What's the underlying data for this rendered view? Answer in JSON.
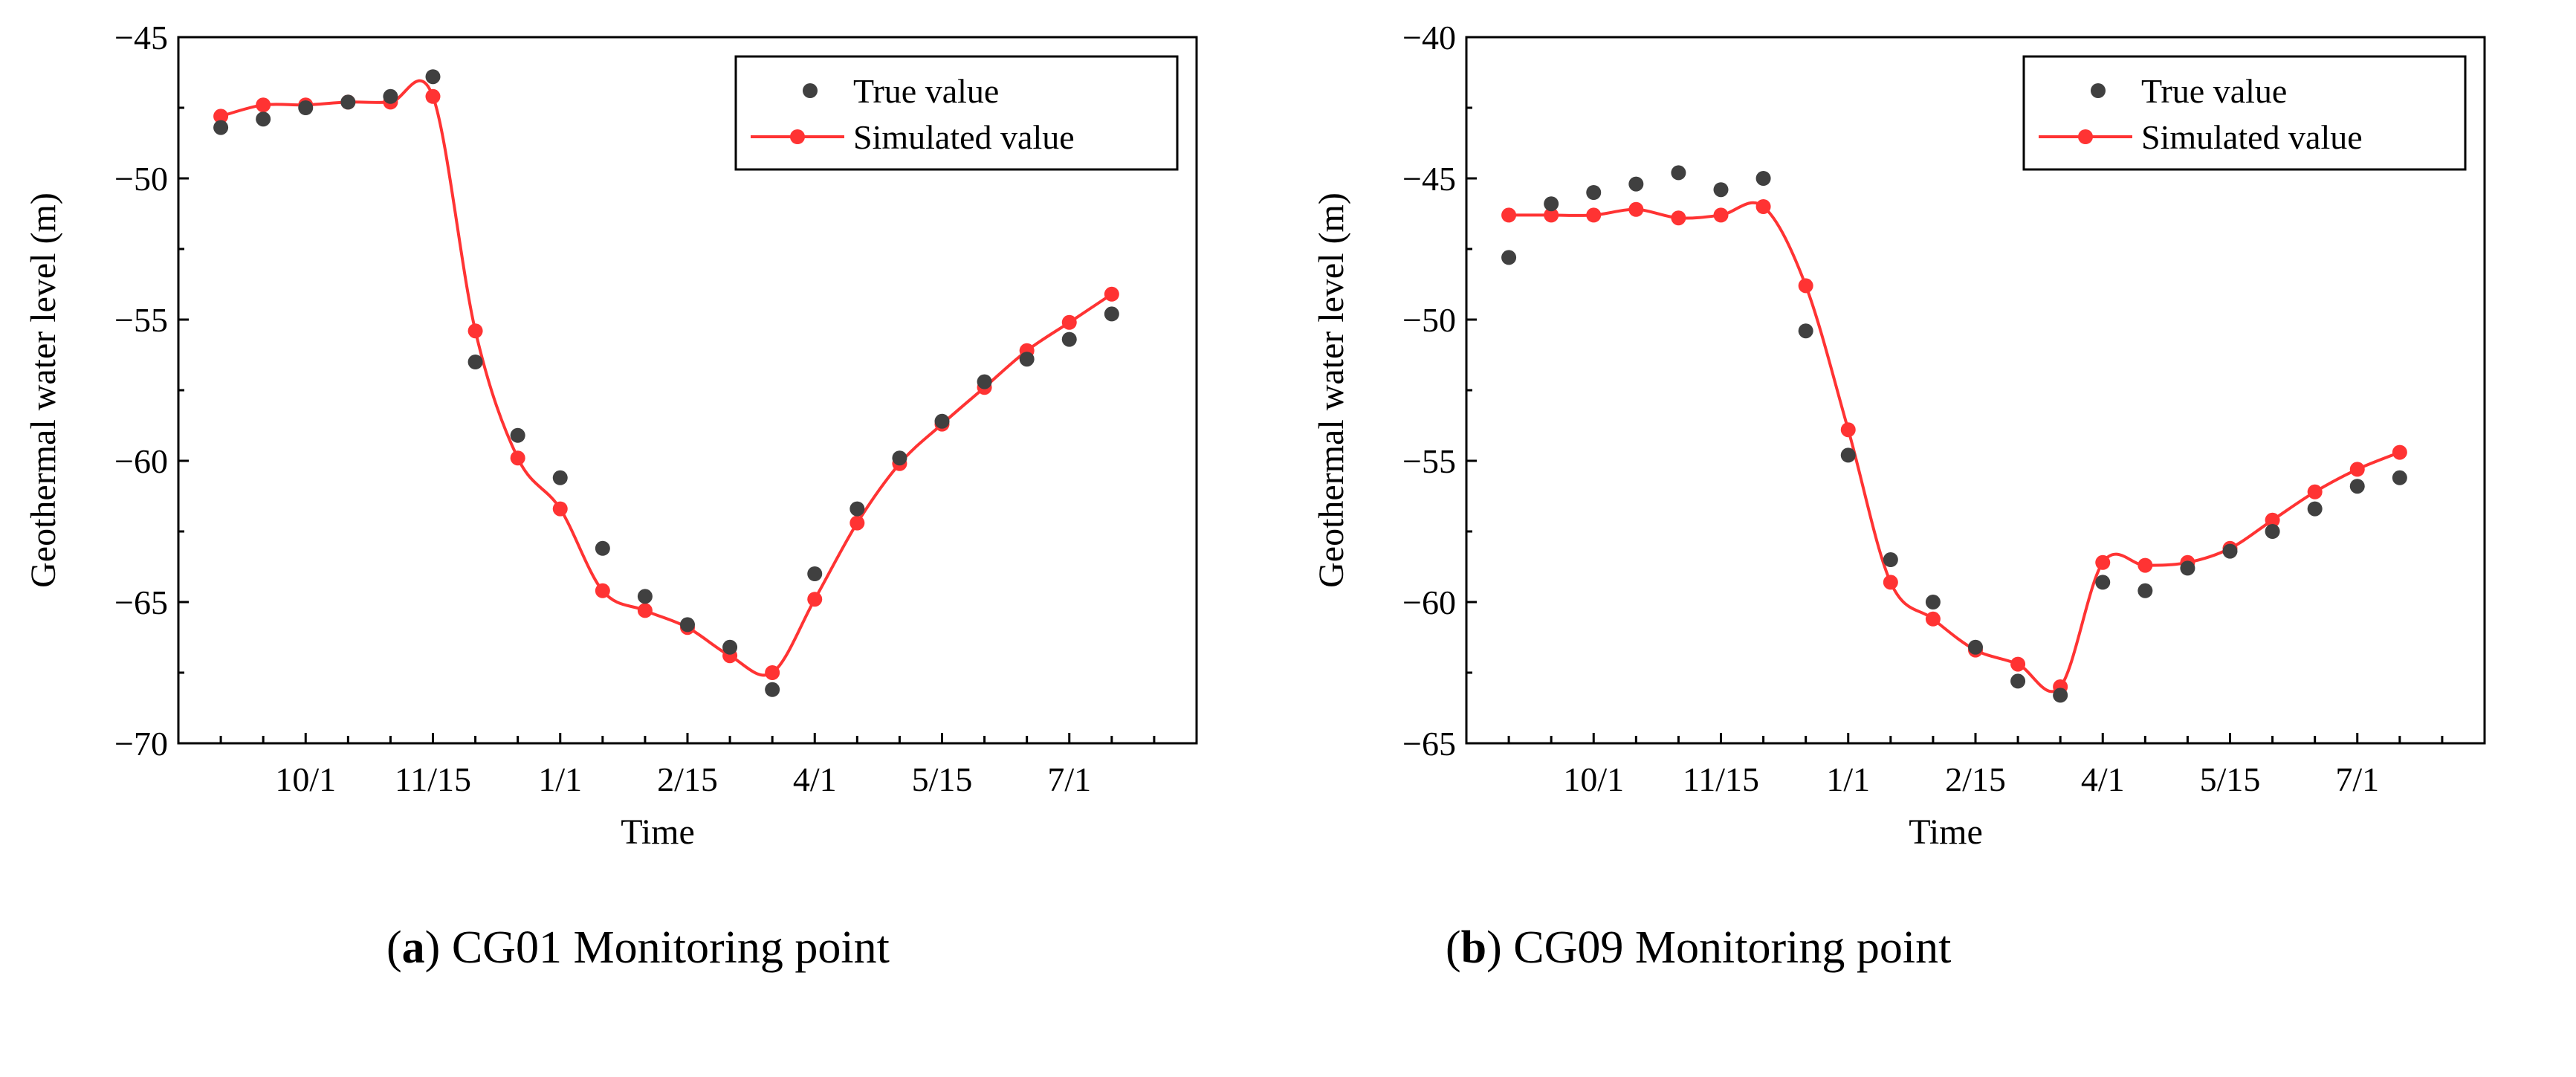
{
  "colors": {
    "true": "#404040",
    "sim": "#ff3333",
    "axis": "#000000"
  },
  "chart_data": [
    {
      "type": "line",
      "id": "a",
      "caption_letter": "a",
      "caption_text": " CG01 Monitoring point",
      "xlabel": "Time",
      "ylabel": "Geothermal water level (m)",
      "ylim": [
        -70,
        -45
      ],
      "yticks": [
        -45,
        -50,
        -55,
        -60,
        -65,
        -70
      ],
      "ytick_labels": [
        "−45",
        "−50",
        "−55",
        "−60",
        "−65",
        "−70"
      ],
      "xticks_labels": [
        "10/1",
        "11/15",
        "1/1",
        "2/15",
        "4/1",
        "5/15",
        "7/1"
      ],
      "xlim": [
        0,
        24
      ],
      "xtick_index_positions": [
        3,
        6,
        9,
        12,
        15,
        18,
        21
      ],
      "legend": [
        "True value",
        "Simulated value"
      ],
      "series": [
        {
          "name": "True value",
          "marker": "dot",
          "x": [
            1,
            2,
            3,
            4,
            5,
            6,
            7,
            8,
            9,
            10,
            11,
            12,
            13,
            14,
            15,
            16,
            17,
            18,
            19,
            20,
            21,
            22
          ],
          "y": [
            -48.2,
            -47.9,
            -47.5,
            -47.3,
            -47.1,
            -46.4,
            -56.5,
            -59.1,
            -60.6,
            -63.1,
            -64.8,
            -65.8,
            -66.6,
            -68.1,
            -64.0,
            -61.7,
            -59.9,
            -58.6,
            -57.2,
            -56.4,
            -55.7,
            -54.8
          ]
        },
        {
          "name": "Simulated value",
          "marker": "line",
          "x": [
            1,
            2,
            3,
            4,
            5,
            6,
            7,
            8,
            9,
            10,
            11,
            12,
            13,
            14,
            15,
            16,
            17,
            18,
            19,
            20,
            21,
            22
          ],
          "y": [
            -47.8,
            -47.4,
            -47.4,
            -47.3,
            -47.3,
            -47.1,
            -55.4,
            -59.9,
            -61.7,
            -64.6,
            -65.3,
            -65.9,
            -66.9,
            -67.5,
            -64.9,
            -62.2,
            -60.1,
            -58.7,
            -57.4,
            -56.1,
            -55.1,
            -54.1
          ]
        }
      ]
    },
    {
      "type": "line",
      "id": "b",
      "caption_letter": "b",
      "caption_text": " CG09 Monitoring point",
      "xlabel": "Time",
      "ylabel": "Geothermal water level (m)",
      "ylim": [
        -65,
        -40
      ],
      "yticks": [
        -40,
        -45,
        -50,
        -55,
        -60,
        -65
      ],
      "ytick_labels": [
        "−40",
        "−45",
        "−50",
        "−55",
        "−60",
        "−65"
      ],
      "xticks_labels": [
        "10/1",
        "11/15",
        "1/1",
        "2/15",
        "4/1",
        "5/15",
        "7/1"
      ],
      "xlim": [
        0,
        24
      ],
      "xtick_index_positions": [
        3,
        6,
        9,
        12,
        15,
        18,
        21
      ],
      "legend": [
        "True value",
        "Simulated value"
      ],
      "series": [
        {
          "name": "True value",
          "marker": "dot",
          "x": [
            1,
            2,
            3,
            4,
            5,
            6,
            7,
            8,
            9,
            10,
            11,
            12,
            13,
            14,
            15,
            16,
            17,
            18,
            19,
            20,
            21,
            22
          ],
          "y": [
            -47.8,
            -45.9,
            -45.5,
            -45.2,
            -44.8,
            -45.4,
            -45.0,
            -50.4,
            -54.8,
            -58.5,
            -60.0,
            -61.6,
            -62.8,
            -63.3,
            -59.3,
            -59.6,
            -58.8,
            -58.2,
            -57.5,
            -56.7,
            -55.9,
            -55.6
          ]
        },
        {
          "name": "Simulated value",
          "marker": "line",
          "x": [
            1,
            2,
            3,
            4,
            5,
            6,
            7,
            8,
            9,
            10,
            11,
            12,
            13,
            14,
            15,
            16,
            17,
            18,
            19,
            20,
            21,
            22
          ],
          "y": [
            -46.3,
            -46.3,
            -46.3,
            -46.1,
            -46.4,
            -46.3,
            -46.0,
            -48.8,
            -53.9,
            -59.3,
            -60.6,
            -61.7,
            -62.2,
            -63.0,
            -58.6,
            -58.7,
            -58.6,
            -58.1,
            -57.1,
            -56.1,
            -55.3,
            -54.7
          ]
        }
      ]
    }
  ]
}
